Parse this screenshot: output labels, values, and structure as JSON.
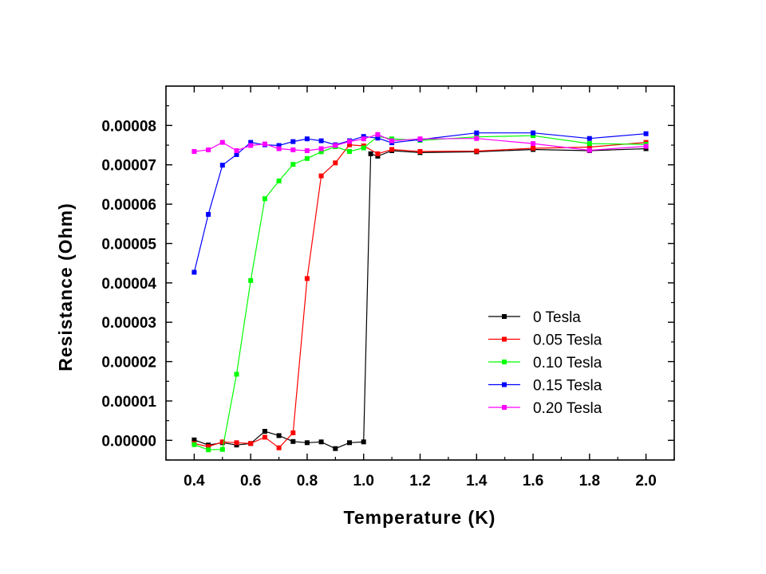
{
  "chart_data": {
    "type": "line",
    "title": "",
    "xlabel": "Temperature (K)",
    "ylabel": "Resistance (Ohm)",
    "xlim": [
      0.3,
      2.1
    ],
    "ylim": [
      -5e-06,
      9e-05
    ],
    "x_ticks": [
      0.4,
      0.6,
      0.8,
      1.0,
      1.2,
      1.4,
      1.6,
      1.8,
      2.0
    ],
    "x_tick_labels": [
      "0.4",
      "0.6",
      "0.8",
      "1.0",
      "1.2",
      "1.4",
      "1.6",
      "1.8",
      "2.0"
    ],
    "y_ticks": [
      0,
      1e-05,
      2e-05,
      3e-05,
      4e-05,
      5e-05,
      6e-05,
      7e-05,
      8e-05
    ],
    "y_tick_labels": [
      "0.00000",
      "0.00001",
      "0.00002",
      "0.00003",
      "0.00004",
      "0.00005",
      "0.00006",
      "0.00007",
      "0.00008"
    ],
    "grid": false,
    "legend_position": "lower-right",
    "series": [
      {
        "name": "0 Tesla",
        "color": "#000000",
        "x": [
          0.4,
          0.45,
          0.5,
          0.55,
          0.6,
          0.65,
          0.7,
          0.75,
          0.8,
          0.85,
          0.9,
          0.95,
          1.0,
          1.025,
          1.05,
          1.1,
          1.2,
          1.4,
          1.6,
          1.8,
          2.0
        ],
        "y": [
          1e-07,
          -1.2e-06,
          -6e-07,
          -1.2e-06,
          -8e-07,
          2.3e-06,
          1.2e-06,
          -3e-07,
          -6e-07,
          -4e-07,
          -2.1e-06,
          -6e-07,
          -4e-07,
          7.28e-05,
          7.22e-05,
          7.36e-05,
          7.31e-05,
          7.33e-05,
          7.39e-05,
          7.36e-05,
          7.41e-05
        ]
      },
      {
        "name": "0.05 Tesla",
        "color": "#ff0000",
        "x": [
          0.4,
          0.45,
          0.5,
          0.55,
          0.6,
          0.65,
          0.7,
          0.75,
          0.8,
          0.85,
          0.9,
          0.95,
          1.0,
          1.05,
          1.1,
          1.2,
          1.4,
          1.6,
          1.8,
          2.0
        ],
        "y": [
          -8e-07,
          -1.6e-06,
          -4e-07,
          -6e-07,
          -8e-07,
          8e-07,
          -1.9e-06,
          1.9e-06,
          4.11e-05,
          6.72e-05,
          7.05e-05,
          7.51e-05,
          7.48e-05,
          7.28e-05,
          7.39e-05,
          7.34e-05,
          7.35e-05,
          7.42e-05,
          7.45e-05,
          7.57e-05
        ]
      },
      {
        "name": "0.10 Tesla",
        "color": "#00ff00",
        "x": [
          0.4,
          0.45,
          0.5,
          0.55,
          0.6,
          0.65,
          0.7,
          0.75,
          0.8,
          0.85,
          0.9,
          0.95,
          1.0,
          1.05,
          1.1,
          1.2,
          1.4,
          1.6,
          1.8,
          2.0
        ],
        "y": [
          -1.1e-06,
          -2.4e-06,
          -2.3e-06,
          1.68e-05,
          4.06e-05,
          6.14e-05,
          6.59e-05,
          7.01e-05,
          7.16e-05,
          7.33e-05,
          7.46e-05,
          7.34e-05,
          7.43e-05,
          7.72e-05,
          7.66e-05,
          7.62e-05,
          7.71e-05,
          7.74e-05,
          7.54e-05,
          7.52e-05
        ]
      },
      {
        "name": "0.15 Tesla",
        "color": "#0000ff",
        "x": [
          0.4,
          0.45,
          0.5,
          0.55,
          0.6,
          0.65,
          0.7,
          0.75,
          0.8,
          0.85,
          0.9,
          0.95,
          1.0,
          1.05,
          1.1,
          1.2,
          1.4,
          1.6,
          1.8,
          2.0
        ],
        "y": [
          4.27e-05,
          5.74e-05,
          6.99e-05,
          7.26e-05,
          7.57e-05,
          7.51e-05,
          7.49e-05,
          7.59e-05,
          7.66e-05,
          7.61e-05,
          7.51e-05,
          7.61e-05,
          7.72e-05,
          7.68e-05,
          7.56e-05,
          7.64e-05,
          7.81e-05,
          7.81e-05,
          7.67e-05,
          7.79e-05
        ]
      },
      {
        "name": "0.20 Tesla",
        "color": "#ff00ff",
        "x": [
          0.4,
          0.45,
          0.5,
          0.55,
          0.6,
          0.65,
          0.7,
          0.75,
          0.8,
          0.85,
          0.9,
          0.95,
          1.0,
          1.05,
          1.1,
          1.2,
          1.4,
          1.6,
          1.8,
          2.0
        ],
        "y": [
          7.34e-05,
          7.38e-05,
          7.57e-05,
          7.36e-05,
          7.49e-05,
          7.53e-05,
          7.41e-05,
          7.38e-05,
          7.36e-05,
          7.41e-05,
          7.49e-05,
          7.59e-05,
          7.66e-05,
          7.77e-05,
          7.61e-05,
          7.66e-05,
          7.67e-05,
          7.54e-05,
          7.37e-05,
          7.47e-05
        ]
      }
    ]
  }
}
